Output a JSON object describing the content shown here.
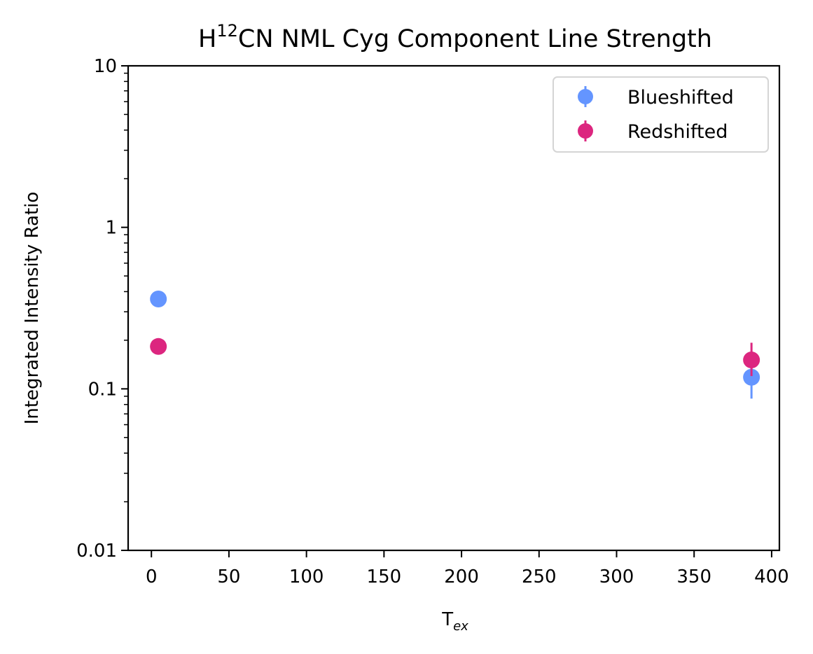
{
  "chart_data": {
    "type": "scatter",
    "title": {
      "prefix": "H",
      "superscript": "12",
      "suffix": "CN NML Cyg Component Line Strength"
    },
    "xlabel": {
      "main": "T",
      "subscript": "ex"
    },
    "ylabel": "Integrated Intensity Ratio",
    "x_scale": "linear",
    "y_scale": "log",
    "xlim": [
      -15,
      405
    ],
    "ylim": [
      0.01,
      10
    ],
    "x_ticks": [
      0,
      50,
      100,
      150,
      200,
      250,
      300,
      350,
      400
    ],
    "x_tick_labels": [
      "0",
      "50",
      "100",
      "150",
      "200",
      "250",
      "300",
      "350",
      "400"
    ],
    "y_ticks": [
      0.01,
      0.1,
      1,
      10
    ],
    "y_tick_labels": [
      "0.01",
      "0.1",
      "1",
      "10"
    ],
    "grid": false,
    "legend_position": "top-right",
    "series": [
      {
        "name": "Blueshifted",
        "color": "#6495ff",
        "points": [
          {
            "x": 4.5,
            "y": 0.36,
            "y_err_low": 0.343,
            "y_err_high": 0.378
          },
          {
            "x": 387,
            "y": 0.118,
            "y_err_low": 0.087,
            "y_err_high": 0.15
          }
        ]
      },
      {
        "name": "Redshifted",
        "color": "#dc267f",
        "points": [
          {
            "x": 4.5,
            "y": 0.183,
            "y_err_low": 0.176,
            "y_err_high": 0.19
          },
          {
            "x": 387,
            "y": 0.151,
            "y_err_low": 0.12,
            "y_err_high": 0.193
          }
        ]
      }
    ]
  }
}
